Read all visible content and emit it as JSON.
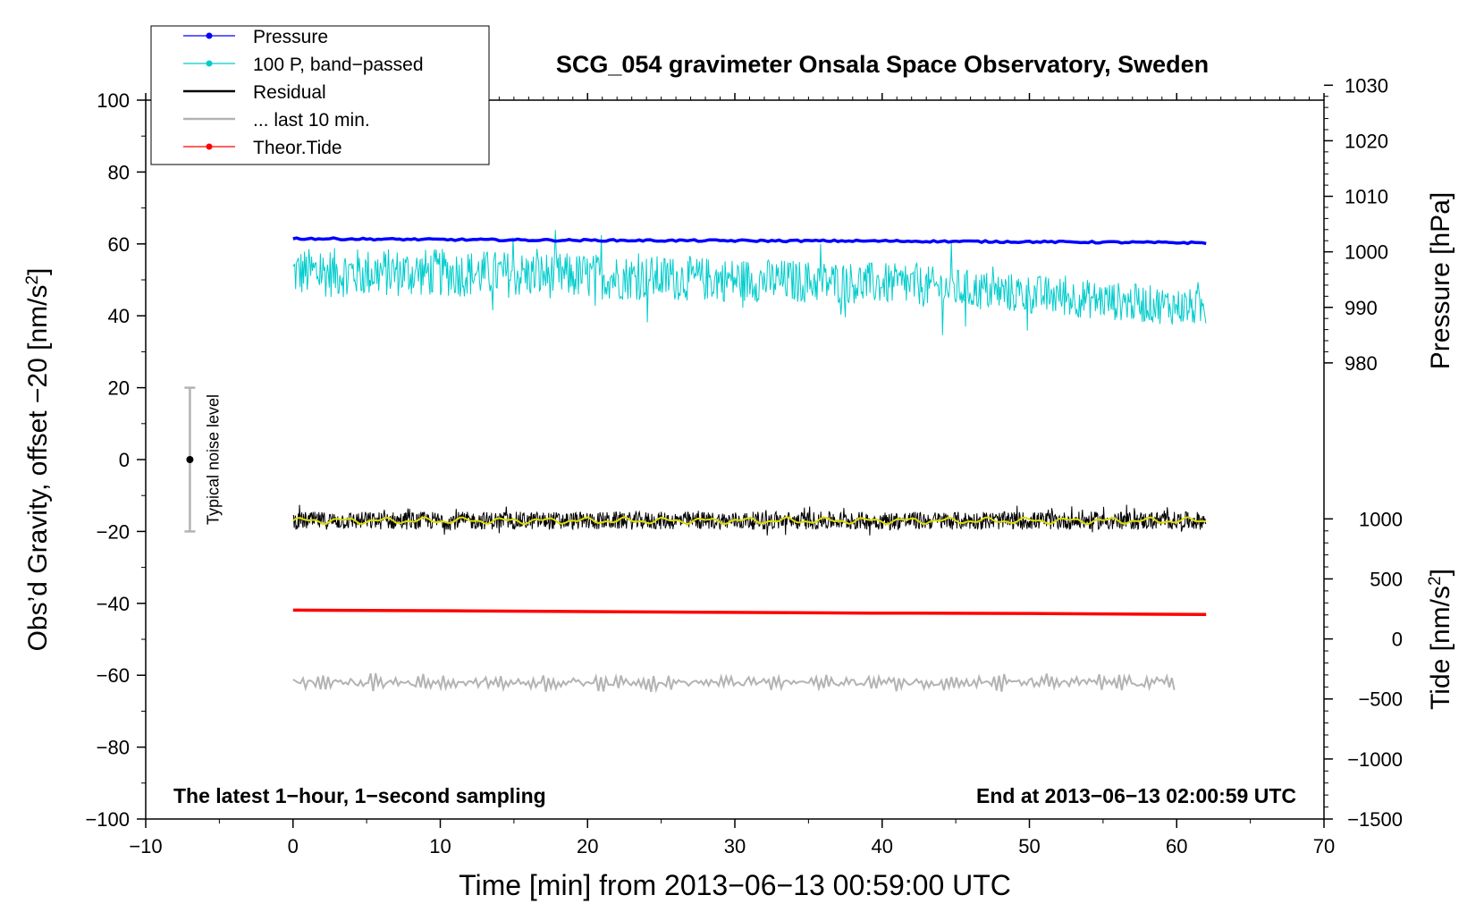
{
  "chart_data": {
    "type": "line",
    "title": "SCG_054 gravimeter Onsala Space Observatory, Sweden",
    "xlabel": "Time [min] from 2013−06−13 00:59:00 UTC",
    "ylabel": "Obs'd Gravity, offset −20 [nm/s²]",
    "ylabel_parts": [
      "Obs’d Gravity, offset −20 [nm/s",
      "2",
      "]"
    ],
    "ylabel_right_pressure": "Pressure [hPa]",
    "ylabel_right_tide": "Tide [nm/s²]",
    "ylabel_right_tide_parts": [
      "Tide [nm/s",
      "2",
      "]"
    ],
    "xlim": [
      -10,
      70
    ],
    "ylim": [
      -100,
      100
    ],
    "x_ticks": [
      -10,
      0,
      10,
      20,
      30,
      40,
      50,
      60,
      70
    ],
    "x_tick_labels": [
      "−10",
      "0",
      "10",
      "20",
      "30",
      "40",
      "50",
      "60",
      "70"
    ],
    "y_ticks": [
      -100,
      -80,
      -60,
      -40,
      -20,
      0,
      20,
      40,
      60,
      80,
      100
    ],
    "y_tick_labels": [
      "−100",
      "−80",
      "−60",
      "−40",
      "−20",
      "0",
      "20",
      "40",
      "60",
      "80",
      "100"
    ],
    "pressure_axis": {
      "ticks": [
        980,
        990,
        1000,
        1010,
        1020,
        1030
      ],
      "tick_labels": [
        "980",
        "990",
        "1000",
        "1010",
        "1020",
        "1030"
      ],
      "left_axis_equivalent": [
        26.9,
        42.35,
        57.8,
        73.25,
        88.7,
        104.15
      ]
    },
    "tide_axis": {
      "ticks": [
        -1500,
        -1000,
        -500,
        0,
        500,
        1000
      ],
      "tick_labels": [
        "−1500",
        "−1000",
        "−500",
        "0",
        "500",
        "1000"
      ],
      "left_axis_equivalent": [
        -100,
        -83.3,
        -66.6,
        -49.9,
        -33.2,
        -16.5
      ]
    },
    "legend": {
      "position": "top-left",
      "entries": [
        {
          "label": "Pressure",
          "color": "#0000ff",
          "marker": true
        },
        {
          "label": "100 P, band−passed",
          "color": "#00cccc",
          "marker": true
        },
        {
          "label": "Residual",
          "color": "#000000",
          "marker": false
        },
        {
          "label": "... last 10 min.",
          "color": "#b3b3b3",
          "marker": false
        },
        {
          "label": "Theor.Tide",
          "color": "#ff0000",
          "marker": true
        }
      ]
    },
    "series": [
      {
        "name": "Pressure",
        "color": "#0000ff",
        "x": [
          0,
          10,
          20,
          30,
          40,
          50,
          62
        ],
        "y": [
          61.5,
          61.2,
          61.0,
          60.9,
          60.8,
          60.6,
          60.3
        ]
      },
      {
        "name": "100 P, band−passed",
        "color": "#00cccc",
        "x": [
          0,
          10,
          20,
          30,
          40,
          50,
          62
        ],
        "y": [
          52,
          52,
          51,
          50,
          49,
          46,
          42
        ],
        "noise_amplitude": 7
      },
      {
        "name": "Residual",
        "color": "#000000",
        "x": [
          0,
          62
        ],
        "y": [
          -17,
          -17
        ],
        "noise_amplitude": 2.5
      },
      {
        "name": "smoothed residual",
        "color": "#dddd00",
        "x": [
          0,
          62
        ],
        "y": [
          -17,
          -17
        ]
      },
      {
        "name": "... last 10 min.",
        "color": "#b3b3b3",
        "x": [
          0,
          60
        ],
        "y": [
          -62,
          -62
        ],
        "noise_amplitude": 2
      },
      {
        "name": "Theor.Tide",
        "color": "#ff0000",
        "x": [
          0,
          11.7,
          24,
          39.2,
          50,
          62
        ],
        "y": [
          -41.9,
          -42.1,
          -42.4,
          -42.7,
          -42.8,
          -43.1
        ]
      }
    ],
    "noise_bar": {
      "label": "Typical noise level",
      "x": -7,
      "y": 0,
      "range": [
        -20,
        20
      ]
    },
    "annotations": {
      "bottom_left": "The latest 1−hour, 1−second sampling",
      "bottom_right": "End at 2013−06−13 02:00:59 UTC"
    },
    "grid": false
  }
}
